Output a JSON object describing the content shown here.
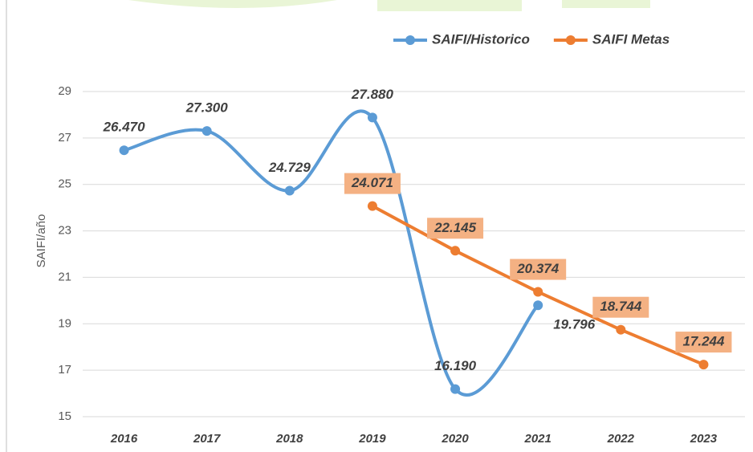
{
  "chart_data": {
    "type": "line",
    "y_label": "SAIFI/año",
    "categories": [
      "2016",
      "2017",
      "2018",
      "2019",
      "2020",
      "2021",
      "2022",
      "2023"
    ],
    "series": [
      {
        "name": "SAIFI/Historico",
        "color": "#5b9bd5",
        "smooth": true,
        "values": [
          26.47,
          27.3,
          24.729,
          27.88,
          16.19,
          19.796,
          null,
          null
        ],
        "value_labels": [
          "26.470",
          "27.300",
          "24.729",
          "27.880",
          "16.190",
          "19.796",
          null,
          null
        ]
      },
      {
        "name": "SAIFI Metas",
        "color": "#ed7d31",
        "smooth": false,
        "values": [
          null,
          null,
          null,
          24.071,
          22.145,
          20.374,
          18.744,
          17.244
        ],
        "value_labels": [
          null,
          null,
          null,
          "24.071",
          "22.145",
          "20.374",
          "18.744",
          "17.244"
        ]
      }
    ],
    "ylim": [
      15,
      29
    ],
    "yticks": [
      15,
      17,
      19,
      21,
      23,
      25,
      27,
      29
    ],
    "grid": true,
    "legend": "top-right"
  }
}
